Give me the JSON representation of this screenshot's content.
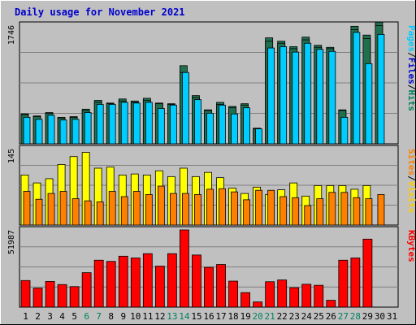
{
  "colors": {
    "page_bg": "#c0c0c0",
    "panel_bg": "#c0c0c0",
    "grid": "#7f7f7f",
    "title": "#0000cc",
    "hits_front": "#00ccff",
    "hits_back": "#207050",
    "pages_front": "#00ccff",
    "files_back": "#207050",
    "visits_front": "#ff8000",
    "sites_back": "#ffff00",
    "kbytes": "#ff0000",
    "weekend_day": "#00805c",
    "weekday_day": "#000000",
    "label_hits": "#00805c",
    "label_files": "#0000cc",
    "label_pages": "#00ccff",
    "label_visits": "#ffcc00",
    "label_sites": "#ff8000",
    "label_kbytes": "#ff0000",
    "label_slash": "#000000"
  },
  "chart_data": {
    "type": "bar",
    "title": "Daily usage for November 2021",
    "categories": [
      "1",
      "2",
      "3",
      "4",
      "5",
      "6",
      "7",
      "8",
      "9",
      "10",
      "11",
      "12",
      "13",
      "14",
      "15",
      "16",
      "17",
      "18",
      "19",
      "20",
      "21",
      "22",
      "23",
      "24",
      "25",
      "26",
      "27",
      "28",
      "29",
      "30",
      "31"
    ],
    "weekend_days": [
      "6",
      "7",
      "13",
      "14",
      "20",
      "21",
      "27",
      "28"
    ],
    "panels": [
      {
        "name": "hits-files-pages",
        "ymax": 1746,
        "ymax_label": "1746",
        "axis_label": [
          "Hits",
          "/",
          "Files",
          "/",
          "Pages"
        ],
        "grid_lines": 3,
        "series": [
          {
            "name": "Hits",
            "values": [
              440,
              410,
              460,
              390,
              400,
              510,
              640,
              600,
              660,
              630,
              670,
              600,
              590,
              1150,
              710,
              500,
              610,
              550,
              590,
              230,
              1560,
              1510,
              1430,
              1570,
              1450,
              1420,
              500,
              1730,
              1600,
              1790,
              0
            ]
          },
          {
            "name": "Files",
            "values": [
              430,
              400,
              450,
              380,
              390,
              490,
              610,
              590,
              630,
              610,
              640,
              590,
              580,
              1050,
              680,
              490,
              580,
              530,
              570,
              220,
              1510,
              1480,
              1400,
              1530,
              1420,
              1400,
              490,
              1680,
              1550,
              1740,
              0
            ]
          },
          {
            "name": "Pages",
            "values": [
              390,
              360,
              420,
              350,
              360,
              460,
              580,
              580,
              610,
              600,
              610,
              520,
              570,
              1050,
              650,
              450,
              570,
              440,
              530,
              220,
              1410,
              1430,
              1350,
              1480,
              1390,
              1360,
              390,
              1640,
              1180,
              1610,
              0
            ]
          }
        ]
      },
      {
        "name": "visits-sites",
        "ymax": 145,
        "ymax_label": "145",
        "axis_label": [
          "Visits",
          "/",
          "Sites"
        ],
        "grid_lines": 3,
        "series": [
          {
            "name": "Visits",
            "values": [
              95,
              80,
              88,
              115,
              130,
              138,
              108,
              110,
              95,
              97,
              95,
              103,
              92,
              108,
              92,
              100,
              90,
              70,
              60,
              72,
              58,
              67,
              80,
              55,
              75,
              75,
              75,
              68,
              75,
              0,
              0
            ]
          },
          {
            "name": "Sites",
            "values": [
              64,
              49,
              60,
              64,
              50,
              46,
              44,
              64,
              54,
              64,
              58,
              74,
              60,
              60,
              58,
              68,
              69,
              63,
              48,
              66,
              66,
              54,
              52,
              37,
              50,
              62,
              62,
              52,
              50,
              58,
              0
            ]
          }
        ]
      },
      {
        "name": "kbytes",
        "ymax": 51987,
        "ymax_label": "51987",
        "axis_label": [
          "KBytes"
        ],
        "grid_lines": 3,
        "series": [
          {
            "name": "KBytes",
            "values": [
              17900,
              12800,
              17300,
              15200,
              13800,
              23200,
              31600,
              30800,
              34300,
              33100,
              36000,
              27600,
              36000,
              51987,
              35100,
              26800,
              28700,
              17500,
              9800,
              3500,
              17100,
              18300,
              13100,
              15400,
              14700,
              4600,
              31600,
              33100,
              45800,
              0,
              0
            ]
          }
        ]
      }
    ]
  }
}
